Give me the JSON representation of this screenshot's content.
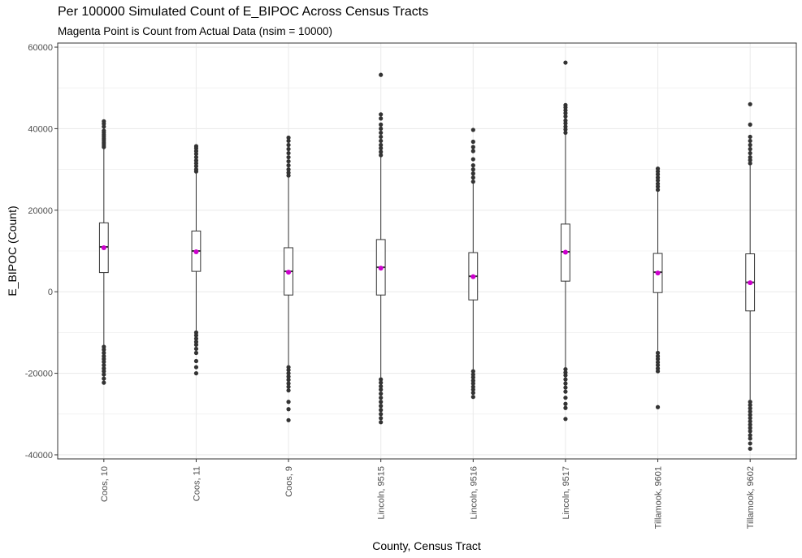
{
  "chart_data": {
    "type": "boxplot",
    "title": "Per 100000 Simulated Count of E_BIPOC Across Census Tracts",
    "subtitle": "Magenta Point is Count from Actual Data (nsim = 10000)",
    "xlabel": "County, Census Tract",
    "ylabel": "E_BIPOC (Count)",
    "ylim": [
      -41000,
      61000
    ],
    "y_ticks": [
      -40000,
      -20000,
      0,
      20000,
      40000,
      60000
    ],
    "grid": true,
    "colors": {
      "box": "#333333",
      "outlier": "#333333",
      "actual_point": "#cc00cc",
      "grid": "#ebebeb"
    },
    "categories": [
      "Coos, 10",
      "Coos, 11",
      "Coos, 9",
      "Lincoln, 9515",
      "Lincoln, 9516",
      "Lincoln, 9517",
      "Tillamook, 9601",
      "Tillamook, 9602"
    ],
    "boxes": [
      {
        "q1": 4700,
        "median": 11000,
        "q3": 16900,
        "whisker_low": -13000,
        "whisker_high": 35000,
        "actual": 10800,
        "outliers_high": [
          35500,
          36000,
          36500,
          37000,
          37500,
          38000,
          38500,
          39000,
          39500,
          40500,
          41200,
          41800
        ],
        "outliers_low": [
          -13500,
          -14200,
          -15000,
          -15800,
          -16500,
          -17200,
          -18000,
          -18800,
          -19500,
          -20300,
          -21300,
          -22300
        ]
      },
      {
        "q1": 5000,
        "median": 10000,
        "q3": 14900,
        "whisker_low": -9500,
        "whisker_high": 29000,
        "actual": 9800,
        "outliers_high": [
          29500,
          30000,
          30800,
          31500,
          32200,
          33000,
          33800,
          34500,
          35200,
          35700
        ],
        "outliers_low": [
          -10000,
          -10700,
          -11500,
          -12300,
          -13000,
          -14000,
          -15000,
          -17000,
          -18500,
          -20000
        ]
      },
      {
        "q1": -800,
        "median": 5000,
        "q3": 10800,
        "whisker_low": -18000,
        "whisker_high": 28000,
        "actual": 4800,
        "outliers_high": [
          28500,
          29200,
          30000,
          31000,
          32000,
          33000,
          34000,
          35000,
          36000,
          37000,
          37800
        ],
        "outliers_low": [
          -18500,
          -19200,
          -20000,
          -20800,
          -21600,
          -22500,
          -23300,
          -24200,
          -27000,
          -28800,
          -31500
        ]
      },
      {
        "q1": -800,
        "median": 6000,
        "q3": 12800,
        "whisker_low": -21000,
        "whisker_high": 33000,
        "actual": 5800,
        "outliers_high": [
          33500,
          34300,
          35200,
          36000,
          37000,
          38000,
          39000,
          40000,
          41000,
          42500,
          43500,
          53200
        ],
        "outliers_low": [
          -21500,
          -22300,
          -23200,
          -24000,
          -25000,
          -26000,
          -27000,
          -28000,
          -29000,
          -30000,
          -31000,
          -32000
        ]
      },
      {
        "q1": -2000,
        "median": 3800,
        "q3": 9600,
        "whisker_low": -19000,
        "whisker_high": 26500,
        "actual": 3700,
        "outliers_high": [
          27000,
          28000,
          29000,
          30000,
          31000,
          32500,
          34500,
          35500,
          36800,
          39700
        ],
        "outliers_low": [
          -19500,
          -20300,
          -21000,
          -21800,
          -22500,
          -23300,
          -24000,
          -24800,
          -25800
        ]
      },
      {
        "q1": 2600,
        "median": 9800,
        "q3": 16600,
        "whisker_low": -18500,
        "whisker_high": 38500,
        "actual": 9700,
        "outliers_high": [
          39000,
          39800,
          40500,
          41300,
          42000,
          43000,
          43800,
          44500,
          45200,
          45800,
          56200
        ],
        "outliers_low": [
          -19000,
          -19800,
          -20500,
          -21500,
          -22500,
          -23500,
          -24500,
          -26000,
          -27500,
          -28500,
          -31200
        ]
      },
      {
        "q1": -200,
        "median": 4800,
        "q3": 9400,
        "whisker_low": -14500,
        "whisker_high": 24500,
        "actual": 4600,
        "outliers_high": [
          25000,
          25800,
          26500,
          27300,
          28000,
          28800,
          29500,
          30200
        ],
        "outliers_low": [
          -15000,
          -15800,
          -16500,
          -17300,
          -18000,
          -18800,
          -19500,
          -28300
        ]
      },
      {
        "q1": -4700,
        "median": 2300,
        "q3": 9300,
        "whisker_low": -26500,
        "whisker_high": 31000,
        "actual": 2200,
        "outliers_high": [
          31500,
          32300,
          33000,
          34000,
          35000,
          36000,
          37000,
          38000,
          41000,
          46000
        ],
        "outliers_low": [
          -27000,
          -27800,
          -28600,
          -29400,
          -30200,
          -31000,
          -31800,
          -32600,
          -33400,
          -34200,
          -35200,
          -36000,
          -37200,
          -38500
        ]
      }
    ]
  }
}
